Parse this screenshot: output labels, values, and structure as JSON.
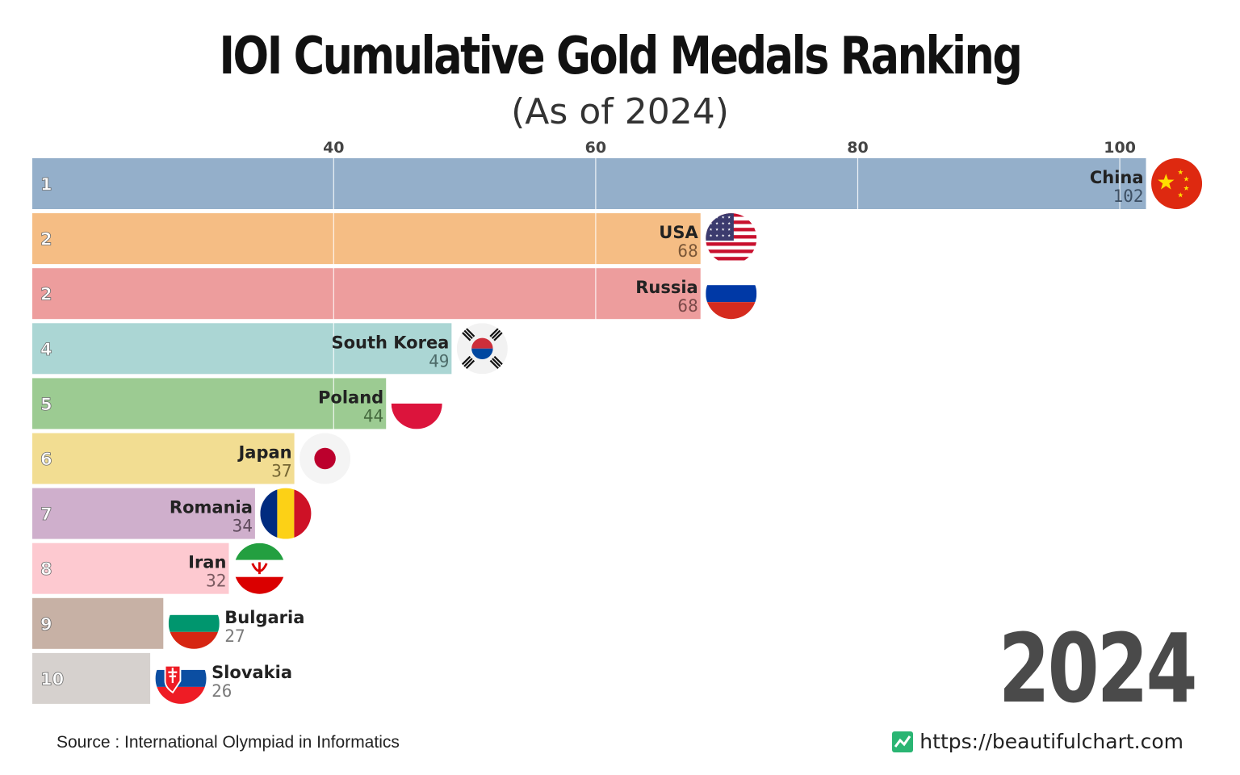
{
  "title": "IOI Cumulative Gold Medals Ranking",
  "subtitle": "(As of 2024)",
  "year": "2024",
  "source": "Source : International Olympiad in Informatics",
  "brand_url": "https://beautifulchart.com",
  "chart_data": {
    "type": "bar",
    "orientation": "horizontal",
    "title": "IOI Cumulative Gold Medals Ranking",
    "subtitle": "(As of 2024)",
    "x_ticks": [
      40,
      60,
      80,
      100
    ],
    "xlim": [
      17,
      102
    ],
    "grid": true,
    "categories": [
      "China",
      "USA",
      "Russia",
      "South Korea",
      "Poland",
      "Japan",
      "Romania",
      "Iran",
      "Bulgaria",
      "Slovakia"
    ],
    "ranks": [
      "1",
      "2",
      "2",
      "4",
      "5",
      "6",
      "7",
      "8",
      "9",
      "10"
    ],
    "values": [
      102,
      68,
      68,
      49,
      44,
      37,
      34,
      32,
      27,
      26
    ],
    "value_labels": [
      "102",
      "68",
      "68",
      "49",
      "44",
      "37",
      "34",
      "32",
      "27",
      "26"
    ],
    "bar_colors": [
      "#94afca",
      "#f5bd84",
      "#ed9d9d",
      "#abd6d4",
      "#9ccb92",
      "#f2dd92",
      "#cfafcc",
      "#fdc9d0",
      "#c7b1a5",
      "#d6d1ce"
    ],
    "value_colors": [
      "#3d4f63",
      "#7a5636",
      "#7a4848",
      "#4d6b69",
      "#466a3f",
      "#756633",
      "#5e4a5c",
      "#7a5a60",
      "#5b4a42",
      "#7a7a7a"
    ],
    "flags": [
      "china-flag",
      "usa-flag",
      "russia-flag",
      "south-korea-flag",
      "poland-flag",
      "japan-flag",
      "romania-flag",
      "iran-flag",
      "bulgaria-flag",
      "slovakia-flag"
    ]
  }
}
